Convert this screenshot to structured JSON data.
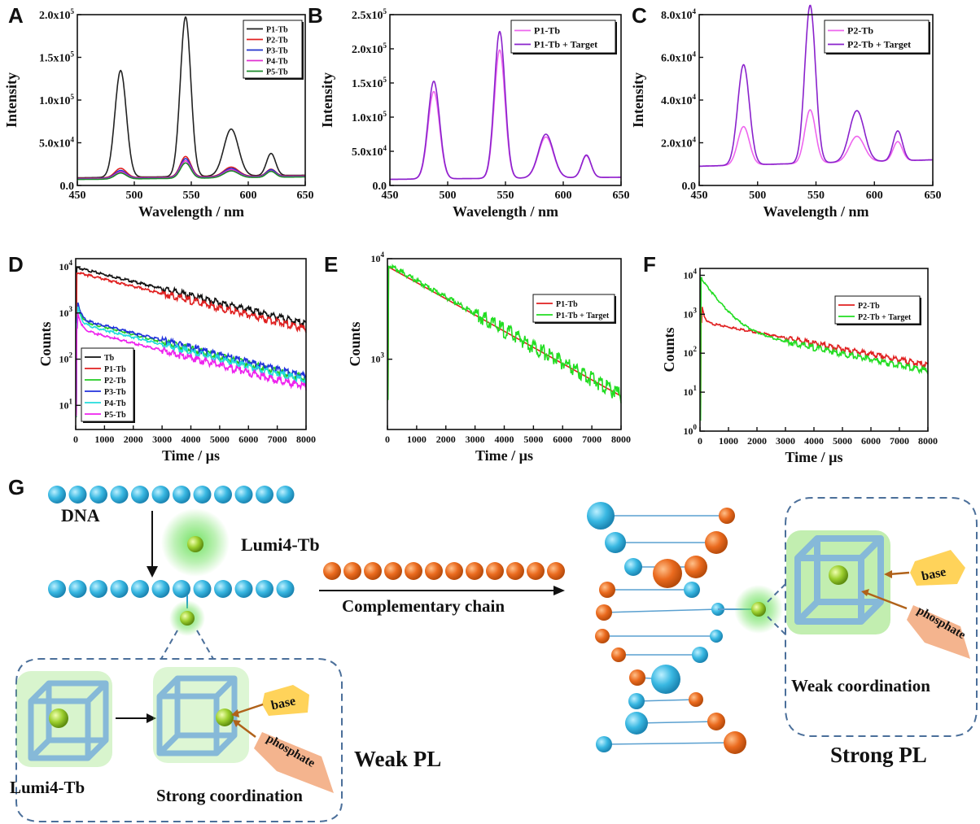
{
  "panel_letters": {
    "A": "A",
    "B": "B",
    "C": "C",
    "D": "D",
    "E": "E",
    "F": "F",
    "G": "G"
  },
  "chart_data": [
    {
      "id": "A",
      "type": "line",
      "xlabel": "Wavelength / nm",
      "ylabel": "Intensity",
      "xlim": [
        450,
        650
      ],
      "ylim": [
        0,
        200000
      ],
      "xticks": [
        "450",
        "500",
        "550",
        "600",
        "650"
      ],
      "yticks": [
        "0.0",
        "5.0x10^4",
        "1.0x10^5",
        "1.5x10^5",
        "2.0x10^5"
      ],
      "legend": "top-right",
      "series": [
        {
          "name": "P1-Tb",
          "color": "#222222",
          "peaks": [
            125000,
            187000,
            55000,
            26000
          ],
          "baseline": [
            9000,
            12000
          ]
        },
        {
          "name": "P2-Tb",
          "color": "#e02020",
          "peaks": [
            11000,
            24000,
            11000,
            8000
          ],
          "baseline": [
            8500,
            11500
          ]
        },
        {
          "name": "P3-Tb",
          "color": "#2233cc",
          "peaks": [
            9000,
            22000,
            10000,
            8000
          ],
          "baseline": [
            8000,
            11000
          ]
        },
        {
          "name": "P4-Tb",
          "color": "#e030d0",
          "peaks": [
            8000,
            20000,
            9000,
            7000
          ],
          "baseline": [
            7500,
            10500
          ]
        },
        {
          "name": "P5-Tb",
          "color": "#1a8a2a",
          "peaks": [
            7000,
            18000,
            8000,
            7000
          ],
          "baseline": [
            7000,
            10000
          ]
        }
      ]
    },
    {
      "id": "B",
      "type": "line",
      "xlabel": "Wavelength / nm",
      "ylabel": "Intensity",
      "xlim": [
        450,
        650
      ],
      "ylim": [
        0,
        250000
      ],
      "xticks": [
        "450",
        "500",
        "550",
        "600",
        "650"
      ],
      "yticks": [
        "0.0",
        "5.0x10^4",
        "1.0x10^5",
        "1.5x10^5",
        "2.0x10^5",
        "2.5x10^5"
      ],
      "legend": "top-right",
      "series": [
        {
          "name": "P1-Tb",
          "color": "#ee66ee",
          "peaks": [
            128000,
            188000,
            60000,
            32000
          ],
          "baseline": [
            9000,
            12000
          ]
        },
        {
          "name": "P1-Tb + Target",
          "color": "#8a22cc",
          "peaks": [
            143000,
            215000,
            64000,
            33000
          ],
          "baseline": [
            9000,
            12000
          ]
        }
      ]
    },
    {
      "id": "C",
      "type": "line",
      "xlabel": "Wavelength / nm",
      "ylabel": "Intensity",
      "xlim": [
        450,
        650
      ],
      "ylim": [
        0,
        80000
      ],
      "xticks": [
        "450",
        "500",
        "550",
        "600",
        "650"
      ],
      "yticks": [
        "0.0",
        "2.0x10^4",
        "4.0x10^4",
        "6.0x10^4",
        "8.0x10^4"
      ],
      "legend": "top-right",
      "series": [
        {
          "name": "P2-Tb",
          "color": "#ee66ee",
          "peaks": [
            18000,
            25000,
            12000,
            9000
          ],
          "baseline": [
            9000,
            12000
          ]
        },
        {
          "name": "P2-Tb + Target",
          "color": "#8a22cc",
          "peaks": [
            47000,
            74000,
            24000,
            14000
          ],
          "baseline": [
            9000,
            12000
          ]
        }
      ]
    },
    {
      "id": "D",
      "type": "line",
      "yscale": "log",
      "xlabel": "Time / µs",
      "ylabel": "Counts",
      "xlim": [
        0,
        8000
      ],
      "ylim": [
        3,
        15000
      ],
      "xticks": [
        "0",
        "1000",
        "2000",
        "3000",
        "4000",
        "5000",
        "6000",
        "7000",
        "8000"
      ],
      "yticks": [
        [
          "10",
          "1"
        ],
        [
          "10",
          "2"
        ],
        [
          "10",
          "3"
        ],
        [
          "10",
          "4"
        ]
      ],
      "legend": "bottom-left",
      "series": [
        {
          "name": "Tb",
          "color": "#111111",
          "start": 9500,
          "end": 580
        },
        {
          "name": "P1-Tb",
          "color": "#e02020",
          "start": 7500,
          "end": 450
        },
        {
          "name": "P2-Tb",
          "color": "#22cc22",
          "start": 700,
          "end": 38
        },
        {
          "name": "P3-Tb",
          "color": "#2233dd",
          "start": 750,
          "end": 42
        },
        {
          "name": "P4-Tb",
          "color": "#22dddd",
          "start": 600,
          "end": 34
        },
        {
          "name": "P5-Tb",
          "color": "#ee22ee",
          "start": 450,
          "end": 25
        }
      ]
    },
    {
      "id": "E",
      "type": "line",
      "yscale": "log",
      "xlabel": "Time / µs",
      "ylabel": "Counts",
      "xlim": [
        0,
        8000
      ],
      "ylim": [
        200,
        10000
      ],
      "xticks": [
        "0",
        "1000",
        "2000",
        "3000",
        "4000",
        "5000",
        "6000",
        "7000",
        "8000"
      ],
      "yticks": [
        [
          "10",
          "3"
        ],
        [
          "10",
          "4"
        ]
      ],
      "legend": "top-right",
      "series": [
        {
          "name": "P1-Tb",
          "color": "#e02020",
          "start": 8200,
          "end": 430
        },
        {
          "name": "P1-Tb + Target",
          "color": "#22dd22",
          "start": 8600,
          "end": 440
        }
      ]
    },
    {
      "id": "F",
      "type": "line",
      "yscale": "log",
      "xlabel": "Time / µs",
      "ylabel": "Counts",
      "xlim": [
        0,
        8000
      ],
      "ylim": [
        1,
        15000
      ],
      "xticks": [
        "0",
        "1000",
        "2000",
        "3000",
        "4000",
        "5000",
        "6000",
        "7000",
        "8000"
      ],
      "yticks": [
        [
          "10",
          "0"
        ],
        [
          "10",
          "1"
        ],
        [
          "10",
          "2"
        ],
        [
          "10",
          "3"
        ],
        [
          "10",
          "4"
        ]
      ],
      "legend": "top-right",
      "series": [
        {
          "name": "P2-Tb",
          "color": "#e02020",
          "start": 600,
          "end": 30
        },
        {
          "name": "P2-Tb + Target",
          "color": "#22dd22",
          "start": 9000,
          "end": 35
        }
      ]
    }
  ],
  "scheme": {
    "dna_label": "DNA",
    "lumi_label_top": "Lumi4-Tb",
    "complementary_label": "Complementary chain",
    "lumi_label_bottom": "Lumi4-Tb",
    "strong_coord_label": "Strong coordination",
    "weak_pl_label": "Weak PL",
    "weak_coord_label": "Weak coordination",
    "strong_pl_label": "Strong PL",
    "base_tag": "base",
    "phosphate_tag": "phosphate"
  }
}
